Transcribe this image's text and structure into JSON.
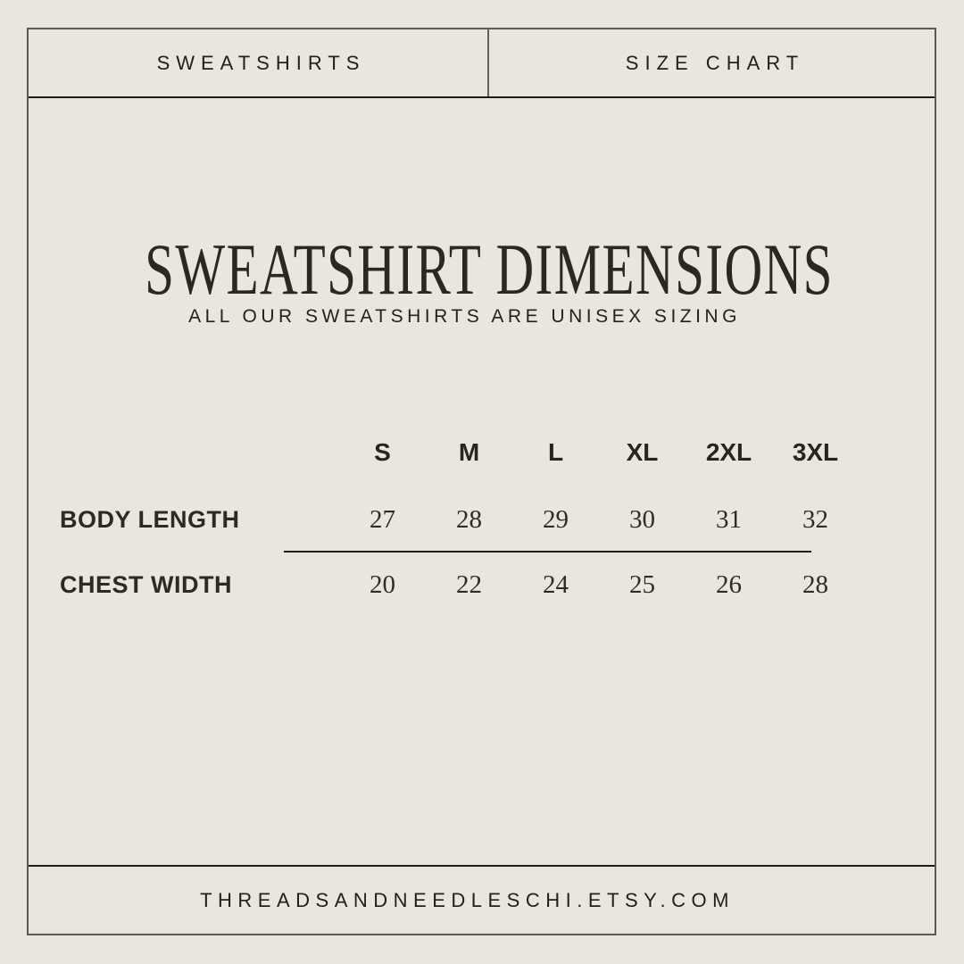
{
  "page": {
    "background_color": "#e9e6de",
    "frame_border_color": "#5c5952",
    "strong_line_color": "#1d1c17",
    "text_color": "#23221d"
  },
  "header": {
    "left_label": "SWEATSHIRTS",
    "right_label": "SIZE CHART"
  },
  "main": {
    "title": "SWEATSHIRT DIMENSIONS",
    "subtitle": "ALL OUR SWEATSHIRTS ARE UNISEX SIZING"
  },
  "chart_data": {
    "type": "table",
    "title": "SWEATSHIRT DIMENSIONS",
    "columns": [
      "S",
      "M",
      "L",
      "XL",
      "2XL",
      "3XL"
    ],
    "rows": [
      {
        "label": "BODY LENGTH",
        "values": [
          "27",
          "28",
          "29",
          "30",
          "31",
          "32"
        ]
      },
      {
        "label": "CHEST WIDTH",
        "values": [
          "20",
          "22",
          "24",
          "25",
          "26",
          "28"
        ]
      }
    ]
  },
  "footer": {
    "website": "THREADSANDNEEDLESCHI.ETSY.COM"
  }
}
